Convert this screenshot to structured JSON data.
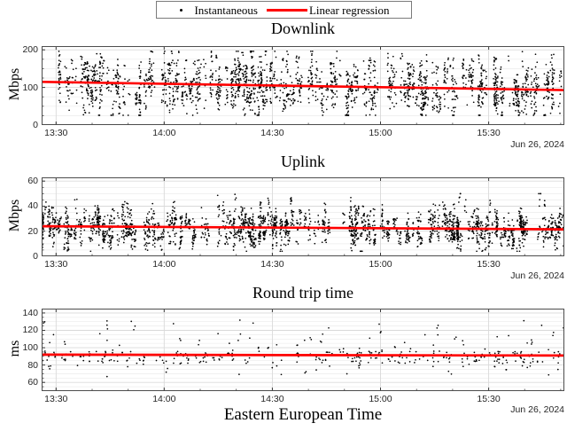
{
  "figure": {
    "background": "#ffffff",
    "point_color": "#000000",
    "regression_color": "#ff0000",
    "grid_major_color": "#d9d9d9",
    "grid_minor_color": "#ececec",
    "axis_color": "#4d4d4d",
    "tick_label_color": "#262626"
  },
  "legend": {
    "position": "top-center",
    "items": [
      {
        "label": "Instantaneous",
        "marker": "dot",
        "color": "#000000"
      },
      {
        "label": "Linear regression",
        "marker": "line",
        "color": "#ff0000"
      }
    ]
  },
  "xlabel": "Eastern European Time",
  "xticklabels": [
    "13:30",
    "14:00",
    "14:30",
    "15:00",
    "15:30"
  ],
  "chart_data": [
    {
      "type": "scatter",
      "title": "Downlink",
      "ylabel": "Mbps",
      "date_label": "Jun 26, 2024",
      "ylim": [
        0,
        210
      ],
      "yticks": [
        0,
        100,
        200
      ],
      "ytick_labels": [
        "0",
        "100",
        "200"
      ],
      "y_minor_step": 25,
      "x_start": "13:26",
      "x_end": "15:51",
      "xticks": [
        "13:30",
        "14:00",
        "14:30",
        "15:00",
        "15:30"
      ],
      "grid": true,
      "regression": {
        "start_value": 115,
        "end_value": 93,
        "units": "Mbps"
      },
      "scatter": {
        "kind": "streaks",
        "seed": 11,
        "streaks": 270,
        "center_jitter": 42,
        "half_min": 18,
        "half_max": 80,
        "pts_min": 4,
        "pts_max": 14,
        "clamp": [
          26,
          196
        ],
        "spikes": 0,
        "spike_range": [
          0,
          0
        ],
        "description": "dense vertical bursts of instantaneous throughput, ~30-195 Mbps, mean declining ~115 to ~93"
      }
    },
    {
      "type": "scatter",
      "title": "Uplink",
      "ylabel": "Mbps",
      "date_label": "Jun 26, 2024",
      "ylim": [
        0,
        63
      ],
      "yticks": [
        0,
        20,
        40,
        60
      ],
      "ytick_labels": [
        "0",
        "20",
        "40",
        "60"
      ],
      "y_minor_step": 5,
      "x_start": "13:26",
      "x_end": "15:51",
      "xticks": [
        "13:30",
        "14:00",
        "14:30",
        "15:00",
        "15:30"
      ],
      "grid": true,
      "regression": {
        "start_value": 24,
        "end_value": 21.5,
        "units": "Mbps"
      },
      "scatter": {
        "kind": "streaks",
        "seed": 22,
        "streaks": 270,
        "center_jitter": 9,
        "half_min": 3,
        "half_max": 16,
        "pts_min": 5,
        "pts_max": 14,
        "clamp": [
          4,
          50
        ],
        "spikes": 10,
        "spike_range": [
          40,
          56
        ],
        "description": "dense vertical bursts ~5-45 Mbps with occasional spikes to ~55, mean ~24 declining to ~21"
      }
    },
    {
      "type": "scatter",
      "title": "Round trip time",
      "ylabel": "ms",
      "date_label": "Jun 26, 2024",
      "ylim": [
        50,
        145
      ],
      "yticks": [
        60,
        80,
        100,
        120,
        140
      ],
      "ytick_labels": [
        "60",
        "80",
        "100",
        "120",
        "140"
      ],
      "y_minor_step": 5,
      "x_start": "13:26",
      "x_end": "15:51",
      "xticks": [
        "13:30",
        "14:00",
        "14:30",
        "15:00",
        "15:30"
      ],
      "grid": true,
      "regression": {
        "start_value": 92,
        "end_value": 91,
        "units": "ms"
      },
      "scatter": {
        "kind": "points",
        "seed": 33,
        "n": 300,
        "base": 89,
        "base_spread": 7,
        "mid_frac": 0.14,
        "mid_range": [
          96,
          116
        ],
        "high_frac": 0.07,
        "high_range": [
          114,
          132
        ],
        "clamp": [
          58,
          134
        ],
        "spikes": 0,
        "spike_range": [
          0,
          0
        ],
        "description": "sparse RTT samples clustered ~80-97 ms with outliers up to ~130 ms, regression flat ~92 ms"
      }
    }
  ]
}
